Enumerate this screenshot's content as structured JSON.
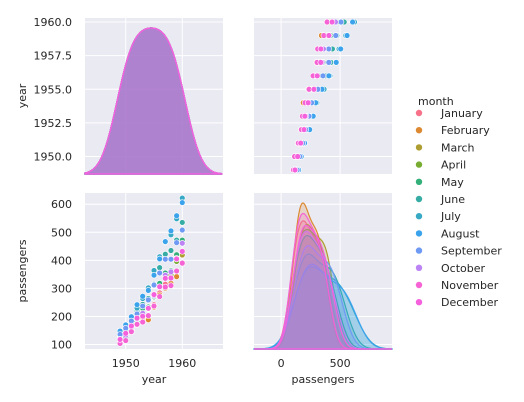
{
  "chart_data": {
    "type": "pairplot",
    "variables": [
      "year",
      "passengers"
    ],
    "hue": "month",
    "x_axes": {
      "year": {
        "range": [
          1942.8,
          1967.2
        ],
        "ticks": [
          1950,
          1960
        ],
        "label": "year"
      },
      "passengers": {
        "range": [
          -230,
          940
        ],
        "ticks": [
          0,
          500
        ],
        "label": "passengers"
      }
    },
    "y_axes": {
      "year": {
        "range": [
          1948.7,
          1960.3
        ],
        "ticks": [
          1950.0,
          1952.5,
          1955.0,
          1957.5,
          1960.0
        ],
        "tick_labels": [
          "1950.0",
          "1952.5",
          "1955.0",
          "1957.5",
          "1960.0"
        ],
        "label": "year"
      },
      "passengers": {
        "range": [
          84,
          640
        ],
        "ticks": [
          100,
          200,
          300,
          400,
          500,
          600
        ],
        "label": "passengers"
      }
    },
    "legend": {
      "title": "month",
      "placement": "right"
    },
    "months": [
      "January",
      "February",
      "March",
      "April",
      "May",
      "June",
      "July",
      "August",
      "September",
      "October",
      "November",
      "December"
    ],
    "colors": [
      "#f77189",
      "#dc8932",
      "#ae9d31",
      "#77ab31",
      "#33b07a",
      "#36ada4",
      "#38a9c5",
      "#3ba3ec",
      "#6e9af4",
      "#bb83f4",
      "#f563d4",
      "#f561dd"
    ],
    "years": [
      1949,
      1950,
      1951,
      1952,
      1953,
      1954,
      1955,
      1956,
      1957,
      1958,
      1959,
      1960
    ],
    "passengers_by_month": [
      [
        112,
        115,
        145,
        171,
        196,
        204,
        242,
        284,
        315,
        340,
        360,
        417
      ],
      [
        118,
        126,
        150,
        180,
        196,
        188,
        233,
        277,
        301,
        318,
        342,
        391
      ],
      [
        132,
        141,
        178,
        193,
        236,
        235,
        267,
        317,
        356,
        362,
        406,
        419
      ],
      [
        129,
        135,
        163,
        181,
        235,
        227,
        269,
        313,
        348,
        348,
        396,
        461
      ],
      [
        121,
        125,
        172,
        183,
        229,
        234,
        270,
        318,
        355,
        363,
        420,
        472
      ],
      [
        135,
        149,
        178,
        218,
        243,
        264,
        315,
        374,
        422,
        435,
        472,
        535
      ],
      [
        148,
        170,
        199,
        230,
        264,
        302,
        364,
        413,
        465,
        491,
        548,
        622
      ],
      [
        148,
        170,
        199,
        242,
        272,
        293,
        347,
        405,
        467,
        505,
        559,
        606
      ],
      [
        136,
        158,
        184,
        209,
        237,
        259,
        312,
        355,
        404,
        404,
        463,
        508
      ],
      [
        119,
        133,
        162,
        191,
        211,
        229,
        274,
        306,
        347,
        359,
        407,
        461
      ],
      [
        104,
        114,
        146,
        172,
        180,
        203,
        237,
        271,
        305,
        310,
        362,
        390
      ],
      [
        118,
        140,
        166,
        194,
        201,
        229,
        278,
        306,
        336,
        337,
        405,
        432
      ]
    ]
  }
}
